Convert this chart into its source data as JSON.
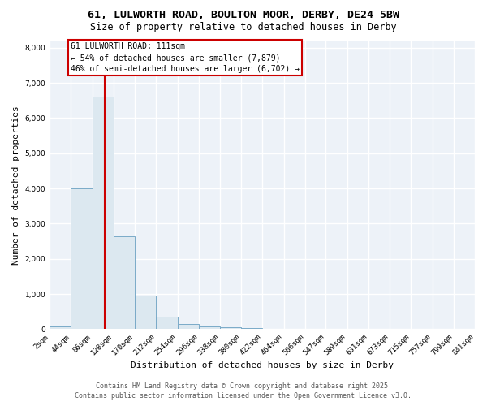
{
  "title1": "61, LULWORTH ROAD, BOULTON MOOR, DERBY, DE24 5BW",
  "title2": "Size of property relative to detached houses in Derby",
  "xlabel": "Distribution of detached houses by size in Derby",
  "ylabel": "Number of detached properties",
  "bar_color": "#dce8f0",
  "bar_edge_color": "#7aaac8",
  "bin_edges": [
    2,
    44,
    86,
    128,
    170,
    212,
    254,
    296,
    338,
    380,
    422,
    464,
    506,
    547,
    589,
    631,
    673,
    715,
    757,
    799,
    841
  ],
  "bar_heights": [
    80,
    4000,
    6600,
    2650,
    950,
    350,
    150,
    80,
    50,
    30,
    0,
    0,
    0,
    0,
    0,
    0,
    0,
    0,
    0,
    0
  ],
  "tick_labels": [
    "2sqm",
    "44sqm",
    "86sqm",
    "128sqm",
    "170sqm",
    "212sqm",
    "254sqm",
    "296sqm",
    "338sqm",
    "380sqm",
    "422sqm",
    "464sqm",
    "506sqm",
    "547sqm",
    "589sqm",
    "631sqm",
    "673sqm",
    "715sqm",
    "757sqm",
    "799sqm",
    "841sqm"
  ],
  "vline_x": 111,
  "vline_color": "#cc0000",
  "annotation_line1": "61 LULWORTH ROAD: 111sqm",
  "annotation_line2": "← 54% of detached houses are smaller (7,879)",
  "annotation_line3": "46% of semi-detached houses are larger (6,702) →",
  "annotation_box_color": "#cc0000",
  "ylim": [
    0,
    8200
  ],
  "yticks": [
    0,
    1000,
    2000,
    3000,
    4000,
    5000,
    6000,
    7000,
    8000
  ],
  "footer1": "Contains HM Land Registry data © Crown copyright and database right 2025.",
  "footer2": "Contains public sector information licensed under the Open Government Licence v3.0.",
  "bg_color": "#edf2f8",
  "plot_bg_color": "#edf2f8",
  "fig_bg_color": "#ffffff",
  "grid_color": "#ffffff",
  "title_fontsize": 9.5,
  "subtitle_fontsize": 8.5,
  "axis_label_fontsize": 8,
  "tick_fontsize": 6.5,
  "annotation_fontsize": 7,
  "footer_fontsize": 6
}
